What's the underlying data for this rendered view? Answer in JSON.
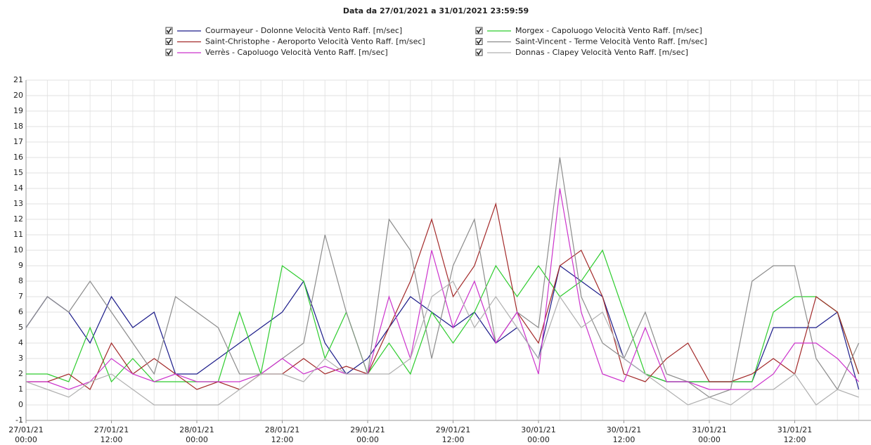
{
  "chart_data": {
    "type": "line",
    "title": "Data da 27/01/2021 a 31/01/2021 23:59:59",
    "x": [
      "27/01/21 00:00",
      "27/01/21 03:00",
      "27/01/21 06:00",
      "27/01/21 09:00",
      "27/01/21 12:00",
      "27/01/21 15:00",
      "27/01/21 18:00",
      "27/01/21 21:00",
      "28/01/21 00:00",
      "28/01/21 03:00",
      "28/01/21 06:00",
      "28/01/21 09:00",
      "28/01/21 12:00",
      "28/01/21 15:00",
      "28/01/21 18:00",
      "28/01/21 21:00",
      "29/01/21 00:00",
      "29/01/21 03:00",
      "29/01/21 06:00",
      "29/01/21 09:00",
      "29/01/21 12:00",
      "29/01/21 15:00",
      "29/01/21 18:00",
      "29/01/21 21:00",
      "30/01/21 00:00",
      "30/01/21 03:00",
      "30/01/21 06:00",
      "30/01/21 09:00",
      "30/01/21 12:00",
      "30/01/21 15:00",
      "30/01/21 18:00",
      "30/01/21 21:00",
      "31/01/21 00:00",
      "31/01/21 03:00",
      "31/01/21 06:00",
      "31/01/21 09:00",
      "31/01/21 12:00",
      "31/01/21 15:00",
      "31/01/21 18:00",
      "31/01/21 21:00"
    ],
    "xticks": [
      "27/01/21 00:00",
      "27/01/21 12:00",
      "28/01/21 00:00",
      "28/01/21 12:00",
      "29/01/21 00:00",
      "29/01/21 12:00",
      "30/01/21 00:00",
      "30/01/21 12:00",
      "31/01/21 00:00",
      "31/01/21 12:00"
    ],
    "ylim": [
      -1,
      21
    ],
    "yticks": [
      -1,
      0,
      1,
      2,
      3,
      4,
      5,
      6,
      7,
      8,
      9,
      10,
      11,
      12,
      13,
      14,
      15,
      16,
      17,
      18,
      19,
      20,
      21
    ],
    "grid": true,
    "series": [
      {
        "name": "Courmayeur - Dolonne Velocità Vento Raff. [m/sec]",
        "color": "#1c1c8a",
        "values": [
          5,
          7,
          6,
          4,
          7,
          5,
          6,
          2,
          2,
          3,
          4,
          5,
          6,
          8,
          4,
          2,
          3,
          5,
          7,
          6,
          5,
          6,
          4,
          5,
          3,
          9,
          8,
          7,
          3,
          2,
          1.5,
          1.5,
          1.5,
          1.5,
          1.5,
          5,
          5,
          5,
          6,
          1
        ]
      },
      {
        "name": "Morgex - Capoluogo Velocità Vento Raff. [m/sec]",
        "color": "#2ecc2e",
        "values": [
          2,
          2,
          1.5,
          5,
          1.5,
          3,
          1.5,
          1.5,
          1.5,
          1.5,
          6,
          2,
          9,
          8,
          3,
          6,
          2,
          4,
          2,
          6,
          4,
          6,
          9,
          7,
          9,
          7,
          8,
          10,
          6,
          2,
          1.5,
          1.5,
          1.5,
          1.5,
          1.5,
          6,
          7,
          7,
          6,
          2
        ]
      },
      {
        "name": "Saint-Christophe - Aeroporto Velocità Vento Raff. [m/sec]",
        "color": "#a32a2a",
        "values": [
          1.5,
          1.5,
          2,
          1,
          4,
          2,
          3,
          2,
          1,
          1.5,
          1,
          2,
          2,
          3,
          2,
          2.5,
          2,
          5,
          8,
          12,
          7,
          9,
          13,
          6,
          4,
          9,
          10,
          7,
          2,
          1.5,
          3,
          4,
          1.5,
          1.5,
          2,
          3,
          2,
          7,
          6,
          2
        ]
      },
      {
        "name": "Saint-Vincent - Terme Velocità Vento Raff. [m/sec]",
        "color": "#8c8c8c",
        "values": [
          5,
          7,
          6,
          8,
          6,
          4,
          2,
          7,
          6,
          5,
          2,
          2,
          3,
          4,
          11,
          6,
          2,
          12,
          10,
          3,
          9,
          12,
          4,
          6,
          5,
          16,
          7,
          4,
          3,
          6,
          2,
          1.5,
          0.5,
          1,
          8,
          9,
          9,
          3,
          1,
          4
        ]
      },
      {
        "name": "Verrès - Capoluogo Velocità Vento Raff. [m/sec]",
        "color": "#cc33cc",
        "values": [
          1.5,
          1.5,
          1,
          1.5,
          3,
          2,
          1.5,
          2,
          1.5,
          1.5,
          1.5,
          2,
          3,
          2,
          2.5,
          2,
          2,
          7,
          3,
          10,
          5,
          8,
          4,
          6,
          2,
          14,
          6,
          2,
          1.5,
          5,
          1.5,
          1.5,
          1,
          1,
          1,
          2,
          4,
          4,
          3,
          1.5
        ]
      },
      {
        "name": "Donnas - Clapey Velocità Vento Raff. [m/sec]",
        "color": "#b0b0b0",
        "values": [
          1.5,
          1,
          0.5,
          1.5,
          2,
          1,
          0,
          0,
          0,
          0,
          1,
          2,
          2,
          1.5,
          3,
          2,
          2,
          2,
          3,
          7,
          8,
          5,
          7,
          5,
          3,
          7,
          5,
          6,
          3,
          2,
          1,
          0,
          0.5,
          0,
          1,
          1,
          2,
          0,
          1,
          0.5
        ]
      }
    ]
  }
}
